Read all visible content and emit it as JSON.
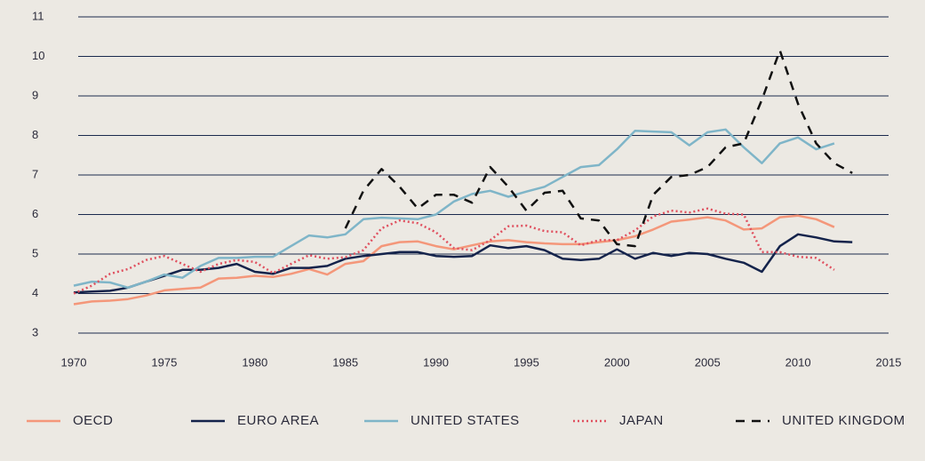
{
  "chart_data": {
    "type": "line",
    "x": [
      1970,
      1971,
      1972,
      1973,
      1974,
      1975,
      1976,
      1977,
      1978,
      1979,
      1980,
      1981,
      1982,
      1983,
      1984,
      1985,
      1986,
      1987,
      1988,
      1989,
      1990,
      1991,
      1992,
      1993,
      1994,
      1995,
      1996,
      1997,
      1998,
      1999,
      2000,
      2001,
      2002,
      2003,
      2004,
      2005,
      2006,
      2007,
      2008,
      2009,
      2010,
      2011,
      2012,
      2013
    ],
    "xlim": [
      1970,
      2015
    ],
    "xticks": [
      1970,
      1975,
      1980,
      1985,
      1990,
      1995,
      2000,
      2005,
      2010,
      2015
    ],
    "ylim": [
      3,
      11
    ],
    "yticks": [
      3,
      4,
      5,
      6,
      7,
      8,
      9,
      10,
      11
    ],
    "grid": true,
    "series": [
      {
        "name": "OECD",
        "color": "#f4977a",
        "style": "solid",
        "values": [
          3.73,
          3.8,
          3.82,
          3.86,
          3.95,
          4.08,
          4.12,
          4.15,
          4.38,
          4.4,
          4.45,
          4.42,
          4.5,
          4.62,
          4.48,
          4.75,
          4.82,
          5.2,
          5.3,
          5.32,
          5.2,
          5.12,
          5.22,
          5.32,
          5.35,
          5.3,
          5.27,
          5.25,
          5.25,
          5.3,
          5.35,
          5.45,
          5.62,
          5.82,
          5.87,
          5.93,
          5.85,
          5.62,
          5.65,
          5.93,
          5.97,
          5.88,
          5.68,
          null
        ]
      },
      {
        "name": "EURO AREA",
        "color": "#14234b",
        "style": "solid",
        "values": [
          4.03,
          4.05,
          4.07,
          4.15,
          4.3,
          4.45,
          4.6,
          4.6,
          4.65,
          4.75,
          4.55,
          4.5,
          4.65,
          4.65,
          4.7,
          4.88,
          4.95,
          5.0,
          5.05,
          5.05,
          4.95,
          4.93,
          4.95,
          5.22,
          5.15,
          5.2,
          5.1,
          4.88,
          4.85,
          4.88,
          5.12,
          4.88,
          5.03,
          4.95,
          5.03,
          5.0,
          4.88,
          4.78,
          4.55,
          5.2,
          5.5,
          5.42,
          5.32,
          5.3
        ]
      },
      {
        "name": "UNITED STATES",
        "color": "#7fb5c8",
        "style": "solid",
        "values": [
          4.2,
          4.3,
          4.28,
          4.15,
          4.3,
          4.48,
          4.4,
          4.7,
          4.9,
          4.9,
          4.93,
          4.93,
          5.2,
          5.47,
          5.42,
          5.5,
          5.88,
          5.92,
          5.9,
          5.88,
          6.0,
          6.33,
          6.52,
          6.6,
          6.45,
          6.58,
          6.7,
          6.95,
          7.2,
          7.25,
          7.65,
          8.12,
          8.1,
          8.08,
          7.75,
          8.08,
          8.15,
          7.7,
          7.3,
          7.8,
          7.95,
          7.65,
          7.8,
          null
        ]
      },
      {
        "name": "JAPAN",
        "color": "#e0505f",
        "style": "dotted",
        "values": [
          4.0,
          4.2,
          4.5,
          4.62,
          4.85,
          4.95,
          4.75,
          4.55,
          4.75,
          4.85,
          4.8,
          4.52,
          4.75,
          4.97,
          4.88,
          4.92,
          5.1,
          5.65,
          5.85,
          5.78,
          5.55,
          5.15,
          5.1,
          5.35,
          5.7,
          5.72,
          5.58,
          5.55,
          5.22,
          5.35,
          5.35,
          5.6,
          5.95,
          6.1,
          6.05,
          6.15,
          6.02,
          6.0,
          5.05,
          5.05,
          4.93,
          4.9,
          4.6,
          null
        ]
      },
      {
        "name": "UNITED KINGDOM",
        "color": "#111111",
        "style": "dashed",
        "values": [
          null,
          null,
          null,
          null,
          null,
          null,
          null,
          null,
          null,
          null,
          null,
          null,
          null,
          null,
          null,
          5.65,
          6.6,
          7.15,
          6.7,
          6.15,
          6.5,
          6.5,
          6.3,
          7.2,
          6.7,
          6.1,
          6.55,
          6.6,
          5.9,
          5.85,
          5.25,
          5.2,
          6.5,
          6.95,
          7.0,
          7.2,
          7.7,
          7.8,
          8.9,
          10.15,
          8.8,
          7.8,
          7.3,
          7.05
        ]
      }
    ]
  }
}
